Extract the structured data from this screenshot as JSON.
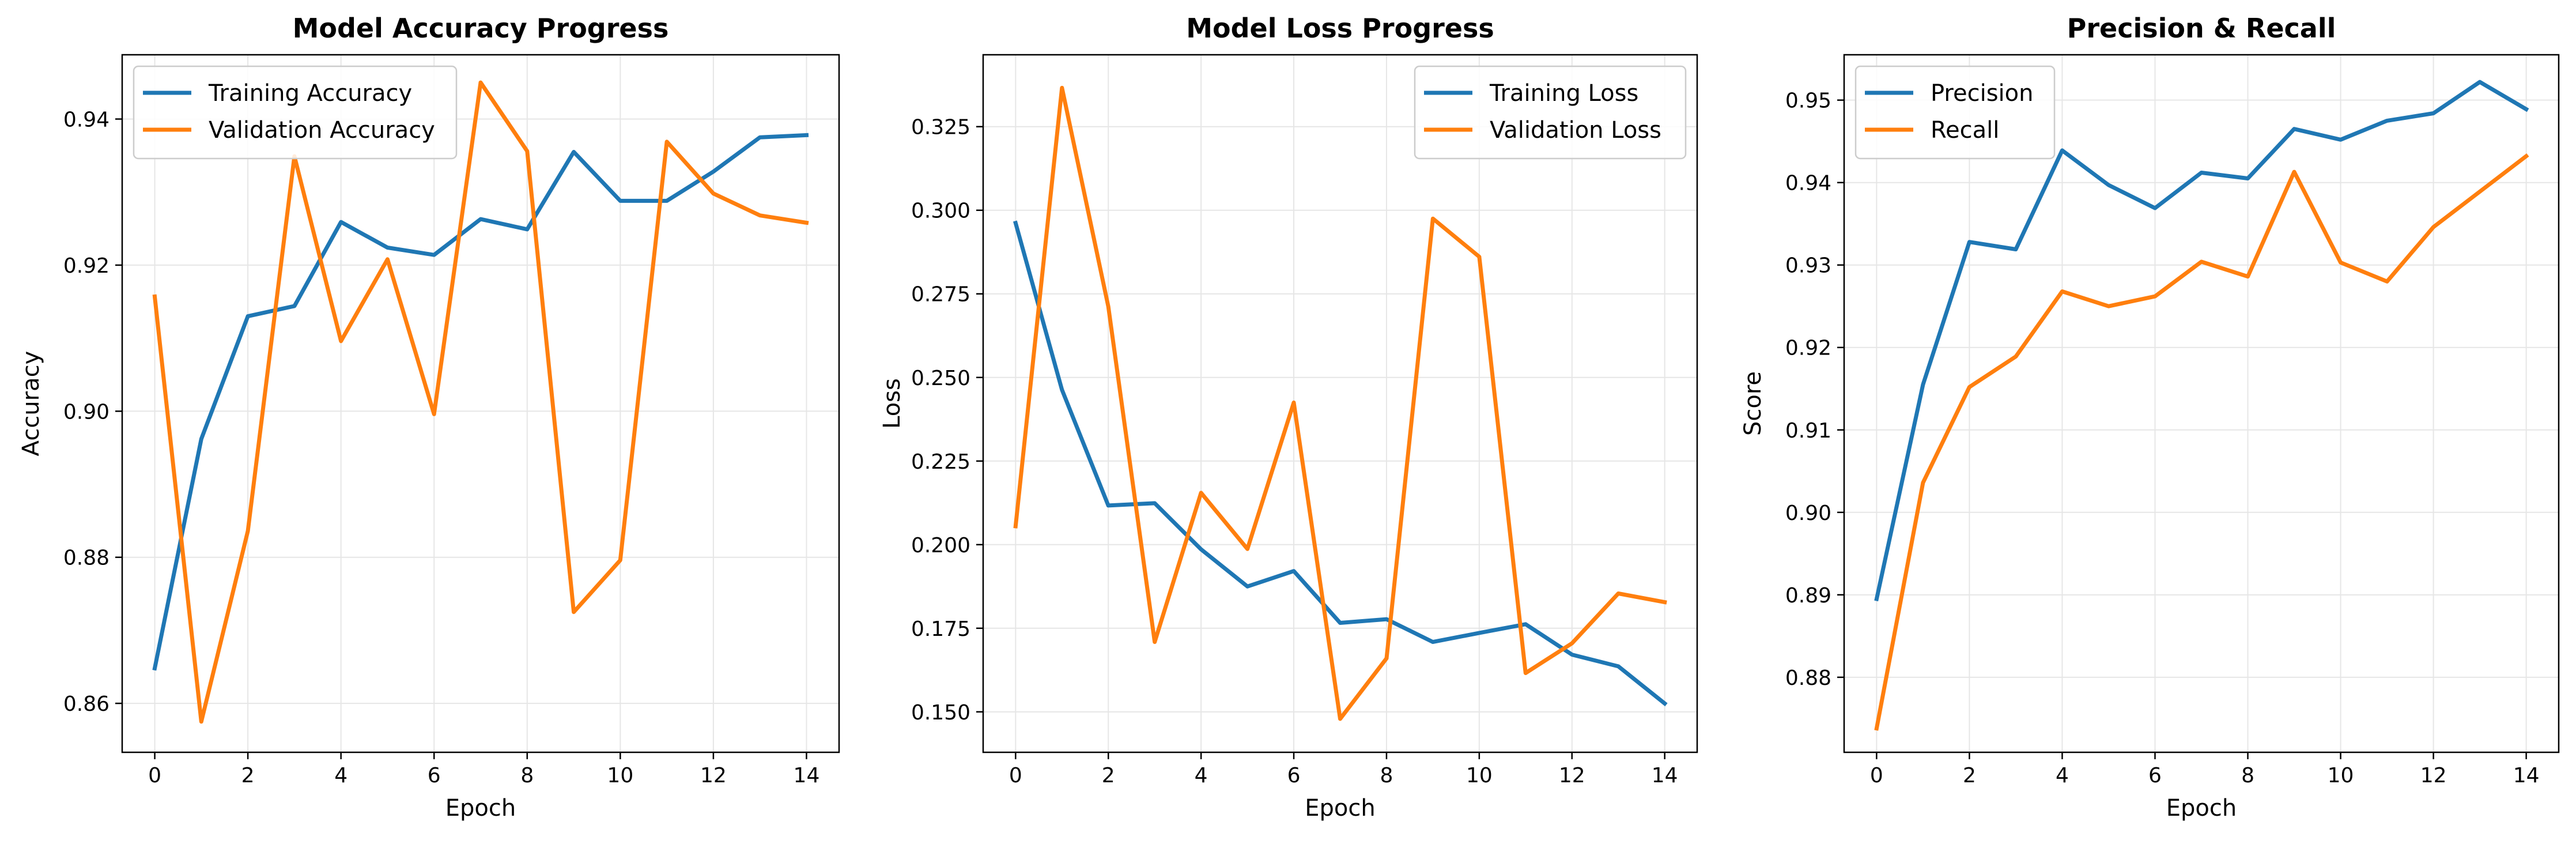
{
  "chart_data": [
    {
      "type": "line",
      "title": "Model Accuracy Progress",
      "xlabel": "Epoch",
      "ylabel": "Accuracy",
      "xlim": [
        -0.7,
        14.7
      ],
      "ylim": [
        0.8533,
        0.9488
      ],
      "xticks": [
        0,
        2,
        4,
        6,
        8,
        10,
        12,
        14
      ],
      "yticks": [
        0.86,
        0.88,
        0.9,
        0.92,
        0.94
      ],
      "ytick_labels": [
        "0.86",
        "0.88",
        "0.90",
        "0.92",
        "0.94"
      ],
      "grid": true,
      "legend_position": "top-left",
      "x": [
        0,
        1,
        2,
        3,
        4,
        5,
        6,
        7,
        8,
        9,
        10,
        11,
        12,
        13,
        14
      ],
      "series": [
        {
          "name": "Training Accuracy",
          "color": "#1f77b4",
          "values": [
            0.8648,
            0.8962,
            0.913,
            0.9144,
            0.9259,
            0.9224,
            0.9214,
            0.9263,
            0.9249,
            0.9355,
            0.9288,
            0.9288,
            0.9328,
            0.9375,
            0.9378
          ]
        },
        {
          "name": "Validation Accuracy",
          "color": "#ff7f0e",
          "values": [
            0.9157,
            0.8575,
            0.8836,
            0.9349,
            0.9096,
            0.9208,
            0.8996,
            0.945,
            0.9356,
            0.8725,
            0.8796,
            0.9369,
            0.9298,
            0.9268,
            0.9258
          ]
        }
      ]
    },
    {
      "type": "line",
      "title": "Model Loss Progress",
      "xlabel": "Epoch",
      "ylabel": "Loss",
      "xlim": [
        -0.7,
        14.7
      ],
      "ylim": [
        0.1379,
        0.3465
      ],
      "xticks": [
        0,
        2,
        4,
        6,
        8,
        10,
        12,
        14
      ],
      "yticks": [
        0.15,
        0.175,
        0.2,
        0.225,
        0.25,
        0.275,
        0.3,
        0.325
      ],
      "ytick_labels": [
        "0.150",
        "0.175",
        "0.200",
        "0.225",
        "0.250",
        "0.275",
        "0.300",
        "0.325"
      ],
      "grid": true,
      "legend_position": "top-right",
      "x": [
        0,
        1,
        2,
        3,
        4,
        5,
        6,
        7,
        8,
        9,
        10,
        11,
        12,
        13,
        14
      ],
      "series": [
        {
          "name": "Training Loss",
          "color": "#1f77b4",
          "values": [
            0.2962,
            0.2463,
            0.2117,
            0.2124,
            0.1986,
            0.1875,
            0.1921,
            0.1766,
            0.1777,
            0.1709,
            0.1736,
            0.1762,
            0.1671,
            0.1636,
            0.1525
          ]
        },
        {
          "name": "Validation Loss",
          "color": "#ff7f0e",
          "values": [
            0.2055,
            0.3366,
            0.2712,
            0.1709,
            0.2155,
            0.1987,
            0.2425,
            0.1479,
            0.166,
            0.2975,
            0.2861,
            0.1616,
            0.1705,
            0.1854,
            0.1828
          ]
        }
      ]
    },
    {
      "type": "line",
      "title": "Precision & Recall",
      "xlabel": "Epoch",
      "ylabel": "Score",
      "xlim": [
        -0.7,
        14.7
      ],
      "ylim": [
        0.8709,
        0.9555
      ],
      "xticks": [
        0,
        2,
        4,
        6,
        8,
        10,
        12,
        14
      ],
      "yticks": [
        0.88,
        0.89,
        0.9,
        0.91,
        0.92,
        0.93,
        0.94,
        0.95
      ],
      "ytick_labels": [
        "0.88",
        "0.89",
        "0.90",
        "0.91",
        "0.92",
        "0.93",
        "0.94",
        "0.95"
      ],
      "grid": true,
      "legend_position": "top-left",
      "x": [
        0,
        1,
        2,
        3,
        4,
        5,
        6,
        7,
        8,
        9,
        10,
        11,
        12,
        13,
        14
      ],
      "series": [
        {
          "name": "Precision",
          "color": "#1f77b4",
          "values": [
            0.8895,
            0.9155,
            0.9328,
            0.9319,
            0.9439,
            0.9397,
            0.9369,
            0.9412,
            0.9405,
            0.9465,
            0.9452,
            0.9475,
            0.9484,
            0.9522,
            0.9489
          ]
        },
        {
          "name": "Recall",
          "color": "#ff7f0e",
          "values": [
            0.8738,
            0.9036,
            0.9152,
            0.9189,
            0.9268,
            0.925,
            0.9262,
            0.9304,
            0.9286,
            0.9413,
            0.9303,
            0.928,
            0.9346,
            0.9389,
            0.9432
          ]
        }
      ]
    }
  ]
}
